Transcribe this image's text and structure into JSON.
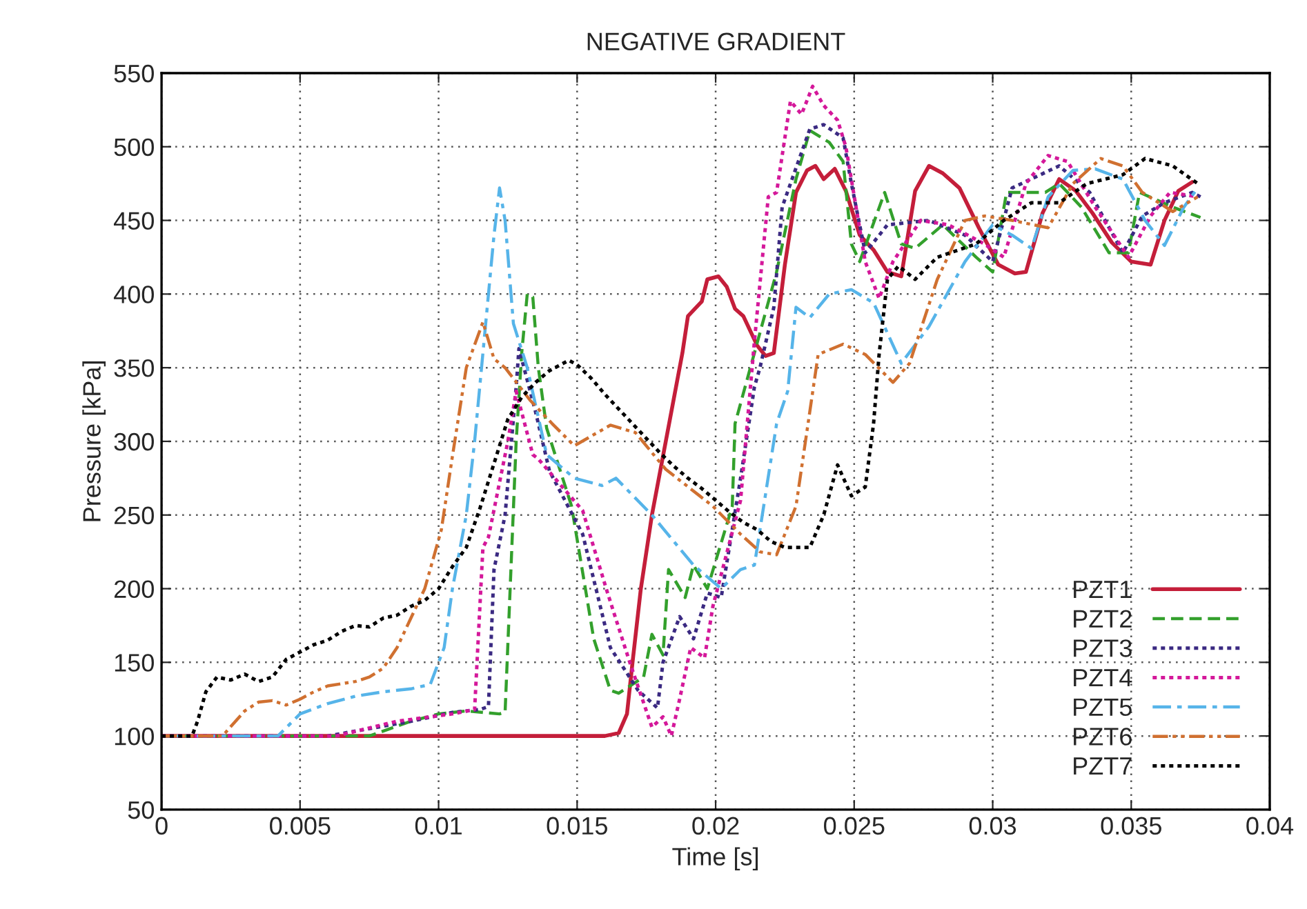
{
  "chart_data": {
    "type": "line",
    "title": "NEGATIVE GRADIENT",
    "xlabel": "Time [s]",
    "ylabel": "Pressure [kPa]",
    "xlim": [
      0,
      0.04
    ],
    "xticks": [
      0,
      0.005,
      0.01,
      0.015,
      0.02,
      0.025,
      0.03,
      0.035,
      0.04
    ],
    "ylim": [
      50,
      550
    ],
    "yticks": [
      50,
      100,
      150,
      200,
      250,
      300,
      350,
      400,
      450,
      500,
      550
    ],
    "grid": true,
    "legend": "bottom right",
    "marker": "none",
    "series": [
      {
        "name": "PZT1",
        "color": "#c41e3a",
        "line_style": "solid",
        "x": [
          0,
          0.016,
          0.0165,
          0.0168,
          0.017,
          0.0173,
          0.0177,
          0.0182,
          0.0188,
          0.019,
          0.0195,
          0.0197,
          0.0201,
          0.0204,
          0.0207,
          0.021,
          0.0215,
          0.0218,
          0.0221,
          0.0225,
          0.0229,
          0.0233,
          0.0236,
          0.0239,
          0.0243,
          0.0247,
          0.0252,
          0.0257,
          0.0262,
          0.0267,
          0.0272,
          0.0277,
          0.0282,
          0.0288,
          0.0295,
          0.0302,
          0.0308,
          0.0312,
          0.0318,
          0.0324,
          0.033,
          0.0336,
          0.0343,
          0.035,
          0.0357,
          0.0362,
          0.0367,
          0.0372
        ],
        "values": [
          100,
          100,
          102,
          115,
          150,
          200,
          250,
          300,
          360,
          385,
          395,
          410,
          412,
          405,
          390,
          385,
          365,
          358,
          360,
          420,
          469,
          484,
          487,
          478,
          485,
          470,
          440,
          430,
          415,
          412,
          470,
          487,
          482,
          472,
          445,
          420,
          414,
          415,
          455,
          478,
          470,
          455,
          435,
          422,
          420,
          450,
          470,
          476
        ]
      },
      {
        "name": "PZT2",
        "color": "#33a02c",
        "line_style": "dashed",
        "x": [
          0,
          0.0075,
          0.009,
          0.01,
          0.011,
          0.0122,
          0.0124,
          0.0128,
          0.013,
          0.0132,
          0.0134,
          0.0136,
          0.0139,
          0.0148,
          0.0156,
          0.0162,
          0.0165,
          0.0174,
          0.0177,
          0.0181,
          0.0183,
          0.0189,
          0.0192,
          0.0197,
          0.0206,
          0.0207,
          0.0222,
          0.0229,
          0.0234,
          0.0241,
          0.0246,
          0.0249,
          0.0252,
          0.0261,
          0.0267,
          0.0272,
          0.0282,
          0.0294,
          0.03,
          0.0305,
          0.0319,
          0.0324,
          0.0332,
          0.0342,
          0.0349,
          0.0353,
          0.0365,
          0.0375
        ],
        "values": [
          100,
          100,
          110,
          115,
          117,
          115,
          116,
          300,
          360,
          400,
          398,
          350,
          309,
          256,
          166,
          131,
          129,
          140,
          169,
          155,
          213,
          194,
          216,
          200,
          256,
          312,
          415,
          478,
          511,
          503,
          490,
          434,
          422,
          469,
          434,
          431,
          447,
          425,
          415,
          469,
          469,
          475,
          459,
          428,
          428,
          469,
          459,
          452
        ]
      },
      {
        "name": "PZT3",
        "color": "#3b2a82",
        "line_style": "dotted",
        "x": [
          0,
          0.006,
          0.009,
          0.0105,
          0.0115,
          0.0118,
          0.012,
          0.0124,
          0.0128,
          0.0129,
          0.0135,
          0.014,
          0.0152,
          0.0162,
          0.0172,
          0.0179,
          0.0181,
          0.0187,
          0.0192,
          0.0197,
          0.0202,
          0.0209,
          0.0214,
          0.0216,
          0.0221,
          0.0224,
          0.0234,
          0.0239,
          0.0246,
          0.0249,
          0.0254,
          0.0262,
          0.0277,
          0.029,
          0.03,
          0.0307,
          0.0324,
          0.0335,
          0.0347,
          0.0354,
          0.0362,
          0.0372,
          0.0375
        ],
        "values": [
          100,
          100,
          110,
          116,
          118,
          120,
          213,
          250,
          337,
          363,
          320,
          280,
          237,
          160,
          131,
          119,
          150,
          181,
          166,
          197,
          194,
          275,
          337,
          350,
          391,
          459,
          512,
          515,
          506,
          475,
          428,
          447,
          450,
          440,
          422,
          472,
          487,
          469,
          428,
          453,
          462,
          469,
          466
        ]
      },
      {
        "name": "PZT4",
        "color": "#d4189a",
        "line_style": "dotted",
        "x": [
          0,
          0.0063,
          0.0085,
          0.0105,
          0.0113,
          0.0116,
          0.0118,
          0.0125,
          0.0128,
          0.0134,
          0.0136,
          0.0152,
          0.0161,
          0.0169,
          0.0177,
          0.0181,
          0.0184,
          0.0187,
          0.0191,
          0.0196,
          0.0199,
          0.0209,
          0.0214,
          0.0219,
          0.0222,
          0.0227,
          0.0231,
          0.0235,
          0.0239,
          0.0244,
          0.0247,
          0.0254,
          0.0259,
          0.0264,
          0.0274,
          0.0284,
          0.0297,
          0.0304,
          0.0312,
          0.032,
          0.0327,
          0.0337,
          0.0349,
          0.0357,
          0.0364,
          0.0374
        ],
        "values": [
          100,
          100,
          110,
          115,
          118,
          228,
          235,
          300,
          334,
          291,
          288,
          253,
          197,
          150,
          106,
          113,
          100,
          125,
          160,
          153,
          188,
          260,
          368,
          466,
          469,
          531,
          522,
          541,
          528,
          518,
          500,
          422,
          397,
          422,
          450,
          447,
          434,
          425,
          475,
          494,
          490,
          459,
          425,
          453,
          469,
          466
        ]
      },
      {
        "name": "PZT5",
        "color": "#56b4e9",
        "line_style": "dashdot",
        "x": [
          0,
          0.0042,
          0.005,
          0.006,
          0.007,
          0.008,
          0.009,
          0.0097,
          0.0102,
          0.0105,
          0.011,
          0.0113,
          0.0117,
          0.012,
          0.0122,
          0.0124,
          0.0127,
          0.0132,
          0.0139,
          0.0149,
          0.0159,
          0.0164,
          0.0177,
          0.0192,
          0.0202,
          0.0209,
          0.0214,
          0.0222,
          0.0226,
          0.0229,
          0.0234,
          0.0241,
          0.0249,
          0.0257,
          0.0267,
          0.0277,
          0.029,
          0.03,
          0.0307,
          0.0314,
          0.032,
          0.0329,
          0.0337,
          0.0347,
          0.0355,
          0.0362,
          0.0369,
          0.0374
        ],
        "values": [
          100,
          100,
          115,
          122,
          127,
          130,
          132,
          135,
          160,
          200,
          250,
          300,
          380,
          440,
          472,
          450,
          380,
          350,
          291,
          275,
          270,
          275,
          250,
          216,
          200,
          213,
          216,
          312,
          334,
          391,
          384,
          400,
          403,
          394,
          353,
          378,
          422,
          447,
          440,
          431,
          466,
          484,
          485,
          478,
          450,
          433,
          459,
          472
        ]
      },
      {
        "name": "PZT6",
        "color": "#d07030",
        "line_style": "dashdotdot",
        "x": [
          0,
          0.0022,
          0.003,
          0.0035,
          0.004,
          0.0045,
          0.005,
          0.0055,
          0.006,
          0.007,
          0.0075,
          0.008,
          0.0085,
          0.009,
          0.0095,
          0.0101,
          0.0105,
          0.011,
          0.0116,
          0.012,
          0.0124,
          0.0133,
          0.0141,
          0.0149,
          0.0162,
          0.0171,
          0.0182,
          0.0199,
          0.0209,
          0.0216,
          0.0222,
          0.0229,
          0.0237,
          0.0246,
          0.0254,
          0.0264,
          0.027,
          0.028,
          0.029,
          0.0297,
          0.0307,
          0.032,
          0.0329,
          0.0339,
          0.0347,
          0.0354,
          0.0365,
          0.0374
        ],
        "values": [
          100,
          100,
          117,
          123,
          124,
          121,
          125,
          130,
          134,
          137,
          140,
          146,
          160,
          180,
          200,
          240,
          290,
          350,
          381,
          356,
          350,
          328,
          312,
          297,
          311,
          306,
          281,
          256,
          237,
          225,
          223,
          256,
          359,
          366,
          359,
          340,
          353,
          410,
          450,
          453,
          450,
          445,
          475,
          492,
          487,
          469,
          456,
          466
        ]
      },
      {
        "name": "PZT7",
        "color": "#000000",
        "line_style": "dotted",
        "x": [
          0,
          0.0011,
          0.0013,
          0.0016,
          0.002,
          0.0025,
          0.003,
          0.0035,
          0.004,
          0.0045,
          0.005,
          0.0055,
          0.006,
          0.0065,
          0.007,
          0.0075,
          0.008,
          0.0085,
          0.009,
          0.0095,
          0.01,
          0.0105,
          0.011,
          0.0115,
          0.012,
          0.0125,
          0.013,
          0.0135,
          0.014,
          0.0147,
          0.015,
          0.0155,
          0.016,
          0.0165,
          0.017,
          0.0175,
          0.018,
          0.0185,
          0.019,
          0.0195,
          0.02,
          0.0205,
          0.021,
          0.0215,
          0.022,
          0.0225,
          0.0234,
          0.0239,
          0.0244,
          0.0249,
          0.0254,
          0.0257,
          0.0259,
          0.0262,
          0.0266,
          0.0272,
          0.028,
          0.0294,
          0.0304,
          0.0314,
          0.0324,
          0.0334,
          0.0347,
          0.0355,
          0.0365,
          0.0374
        ],
        "values": [
          100,
          100,
          110,
          130,
          140,
          138,
          142,
          137,
          140,
          152,
          157,
          162,
          165,
          171,
          175,
          174,
          180,
          182,
          188,
          192,
          200,
          215,
          228,
          255,
          285,
          315,
          330,
          340,
          348,
          355,
          352,
          343,
          332,
          322,
          312,
          302,
          292,
          283,
          275,
          268,
          260,
          252,
          245,
          240,
          232,
          228,
          228,
          250,
          284,
          263,
          269,
          312,
          359,
          410,
          419,
          410,
          425,
          434,
          450,
          462,
          462,
          475,
          481,
          492,
          487,
          475
        ]
      }
    ]
  }
}
